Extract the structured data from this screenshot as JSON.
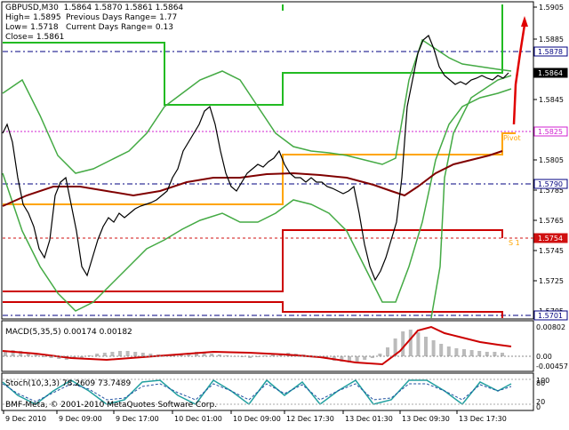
{
  "header": {
    "line1": "GBPUSD,M30  1.5864 1.5870 1.5861 1.5864",
    "high": "High= 1.5895",
    "prev_range": "Previous Days Range= 1.77",
    "low": "Low= 1.5718",
    "curr_range": "Current Days Range= 0.13",
    "close": "Close= 1.5861"
  },
  "price_axis": {
    "ticks": [
      "1.5905",
      "1.5885",
      "1.5845",
      "1.5805",
      "1.5785",
      "1.5765",
      "1.5745",
      "1.5725",
      "1.5705"
    ],
    "labels": [
      {
        "value": "1.5878",
        "bg": "#ffffff",
        "fg": "#000080"
      },
      {
        "value": "1.5864",
        "bg": "#000000",
        "fg": "#ffffff"
      },
      {
        "value": "1.5825",
        "bg": "#ffffff",
        "fg": "#d020d0"
      },
      {
        "value": "1.5790",
        "bg": "#ffffff",
        "fg": "#000080"
      },
      {
        "value": "1.5754",
        "bg": "#d01010",
        "fg": "#ffffff"
      },
      {
        "value": "1.5701",
        "bg": "#ffffff",
        "fg": "#000080"
      }
    ]
  },
  "levels": {
    "pivot_label": "Pivot",
    "s1_label": "S 1",
    "line_colors": {
      "pivot": "#d020d0",
      "s1": "#d01010",
      "guide": "#000080",
      "resistance": "#22bb22",
      "support": "#cc0000",
      "pivot_step": "#ffa500"
    }
  },
  "macd": {
    "label": "MACD(5,35,5) 0.00174 0.00182",
    "ticks": [
      "0.00802",
      "0.00",
      "-0.00457"
    ]
  },
  "stoch": {
    "label": "Stoch(10,3,3) 78.2609 73.7489",
    "ticks": [
      "100",
      "80",
      "20",
      "0"
    ]
  },
  "copyright": "BMF-Meta, © 2001-2010 MetaQuotes Software Corp.",
  "time_axis": [
    "9 Dec 2010",
    "9 Dec 09:00",
    "9 Dec 17:00",
    "10 Dec 01:00",
    "10 Dec 09:00",
    "12 Dec 17:30",
    "13 Dec 01:30",
    "13 Dec 09:30",
    "13 Dec 17:30"
  ]
}
